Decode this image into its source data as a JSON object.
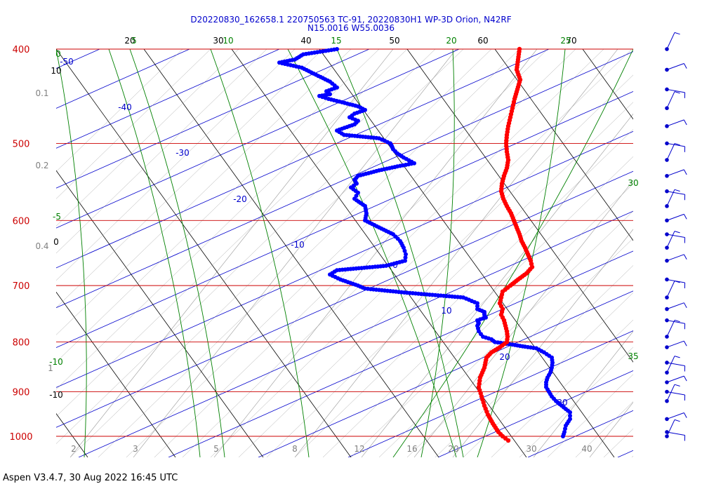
{
  "chart_data": {
    "type": "scatter",
    "title_line1": "D20220830_162658.1 220750563 TC-91, 20220830H1 WP-3D Orion, N42RF",
    "title_line2": "N15.0016 W55.0036",
    "footer": "Aspen V3.4.7, 30 Aug 2022  16:45 UTC",
    "pressure_levels": [
      {
        "p": 400,
        "label": "400"
      },
      {
        "p": 500,
        "label": "500"
      },
      {
        "p": 600,
        "label": "600"
      },
      {
        "p": 700,
        "label": "700"
      },
      {
        "p": 800,
        "label": "800"
      },
      {
        "p": 900,
        "label": "900"
      },
      {
        "p": 1000,
        "label": "1000"
      }
    ],
    "top_temperature_labels": [
      "20",
      "30",
      "40",
      "50",
      "60",
      "70"
    ],
    "top_dry_adiabat_labels": [
      "5",
      "10",
      "15",
      "20",
      "25"
    ],
    "isotherm_labels": [
      "-50",
      "-40",
      "-30",
      "-20",
      "-10",
      "0",
      "10",
      "20",
      "30"
    ],
    "mixing_ratio_labels": [
      "2",
      "3",
      "5",
      "8",
      "12",
      "16",
      "20",
      "30",
      "40"
    ],
    "moist_adiabat_labels": [
      "0",
      "-5",
      "-10",
      "30",
      "35"
    ],
    "left_black_labels": [
      "10",
      "0",
      "-10"
    ],
    "left_gray_labels": [
      "0.1",
      "0.2",
      "0.4",
      "1"
    ],
    "series": [
      {
        "name": "temperature",
        "color": "#ff0000",
        "points": [
          [
            400,
            740
          ],
          [
            410,
            738
          ],
          [
            420,
            736
          ],
          [
            430,
            741
          ],
          [
            440,
            737
          ],
          [
            450,
            733
          ],
          [
            460,
            730
          ],
          [
            470,
            727
          ],
          [
            480,
            724
          ],
          [
            490,
            722
          ],
          [
            500,
            721
          ],
          [
            510,
            722
          ],
          [
            520,
            724
          ],
          [
            530,
            722
          ],
          [
            540,
            718
          ],
          [
            550,
            715
          ],
          [
            560,
            714
          ],
          [
            570,
            717
          ],
          [
            580,
            722
          ],
          [
            590,
            728
          ],
          [
            600,
            732
          ],
          [
            610,
            736
          ],
          [
            620,
            740
          ],
          [
            630,
            743
          ],
          [
            640,
            748
          ],
          [
            650,
            752
          ],
          [
            660,
            756
          ],
          [
            670,
            758
          ],
          [
            680,
            750
          ],
          [
            690,
            738
          ],
          [
            700,
            727
          ],
          [
            710,
            716
          ],
          [
            720,
            714
          ],
          [
            730,
            712
          ],
          [
            740,
            716
          ],
          [
            750,
            714
          ],
          [
            760,
            718
          ],
          [
            770,
            720
          ],
          [
            780,
            722
          ],
          [
            790,
            723
          ],
          [
            800,
            722
          ],
          [
            810,
            712
          ],
          [
            820,
            700
          ],
          [
            830,
            693
          ],
          [
            850,
            690
          ],
          [
            870,
            684
          ],
          [
            890,
            682
          ],
          [
            910,
            686
          ],
          [
            930,
            690
          ],
          [
            950,
            695
          ],
          [
            970,
            702
          ],
          [
            990,
            710
          ],
          [
            1000,
            716
          ],
          [
            1010,
            724
          ]
        ]
      },
      {
        "name": "dewpoint",
        "color": "#0000ff",
        "points": [
          [
            400,
            480
          ],
          [
            405,
            432
          ],
          [
            410,
            420
          ],
          [
            413,
            398
          ],
          [
            418,
            430
          ],
          [
            425,
            450
          ],
          [
            432,
            470
          ],
          [
            438,
            480
          ],
          [
            442,
            465
          ],
          [
            445,
            470
          ],
          [
            447,
            455
          ],
          [
            450,
            468
          ],
          [
            458,
            510
          ],
          [
            462,
            520
          ],
          [
            466,
            505
          ],
          [
            470,
            498
          ],
          [
            474,
            510
          ],
          [
            478,
            505
          ],
          [
            485,
            480
          ],
          [
            490,
            490
          ],
          [
            494,
            540
          ],
          [
            500,
            556
          ],
          [
            503,
            558
          ],
          [
            507,
            560
          ],
          [
            512,
            566
          ],
          [
            517,
            575
          ],
          [
            524,
            590
          ],
          [
            528,
            566
          ],
          [
            533,
            540
          ],
          [
            540,
            510
          ],
          [
            545,
            505
          ],
          [
            550,
            508
          ],
          [
            555,
            500
          ],
          [
            562,
            510
          ],
          [
            570,
            505
          ],
          [
            580,
            520
          ],
          [
            590,
            522
          ],
          [
            600,
            520
          ],
          [
            610,
            540
          ],
          [
            620,
            560
          ],
          [
            630,
            570
          ],
          [
            640,
            575
          ],
          [
            650,
            578
          ],
          [
            660,
            577
          ],
          [
            668,
            550
          ],
          [
            675,
            480
          ],
          [
            682,
            470
          ],
          [
            690,
            485
          ],
          [
            700,
            510
          ],
          [
            705,
            520
          ],
          [
            712,
            580
          ],
          [
            720,
            660
          ],
          [
            730,
            680
          ],
          [
            740,
            680
          ],
          [
            745,
            690
          ],
          [
            750,
            690
          ],
          [
            755,
            692
          ],
          [
            760,
            680
          ],
          [
            765,
            682
          ],
          [
            770,
            680
          ],
          [
            780,
            682
          ],
          [
            790,
            688
          ],
          [
            795,
            700
          ],
          [
            800,
            705
          ],
          [
            805,
            730
          ],
          [
            809,
            748
          ],
          [
            812,
            764
          ],
          [
            820,
            775
          ],
          [
            830,
            786
          ],
          [
            840,
            787
          ],
          [
            850,
            786
          ],
          [
            860,
            784
          ],
          [
            870,
            780
          ],
          [
            880,
            778
          ],
          [
            890,
            778
          ],
          [
            900,
            782
          ],
          [
            910,
            786
          ],
          [
            920,
            792
          ],
          [
            930,
            800
          ],
          [
            945,
            812
          ],
          [
            960,
            812
          ],
          [
            975,
            806
          ],
          [
            990,
            804
          ],
          [
            1000,
            802
          ]
        ]
      }
    ],
    "wind_barbs_pressure": [
      400,
      420,
      440,
      460,
      480,
      500,
      520,
      540,
      560,
      580,
      600,
      620,
      640,
      660,
      690,
      720,
      740,
      760,
      790,
      810,
      840,
      860,
      880,
      900,
      920,
      960,
      990,
      1000
    ],
    "colors": {
      "title": "#0000cc",
      "isobar": "#cc0000",
      "isotherm": "#0000cc",
      "dry_adiabat": "#000000",
      "moist_adiabat": "#008000",
      "mixing_ratio": "#808080",
      "temperature": "#ff0000",
      "dewpoint": "#0000ff",
      "wind_barb": "#0000cc"
    }
  }
}
